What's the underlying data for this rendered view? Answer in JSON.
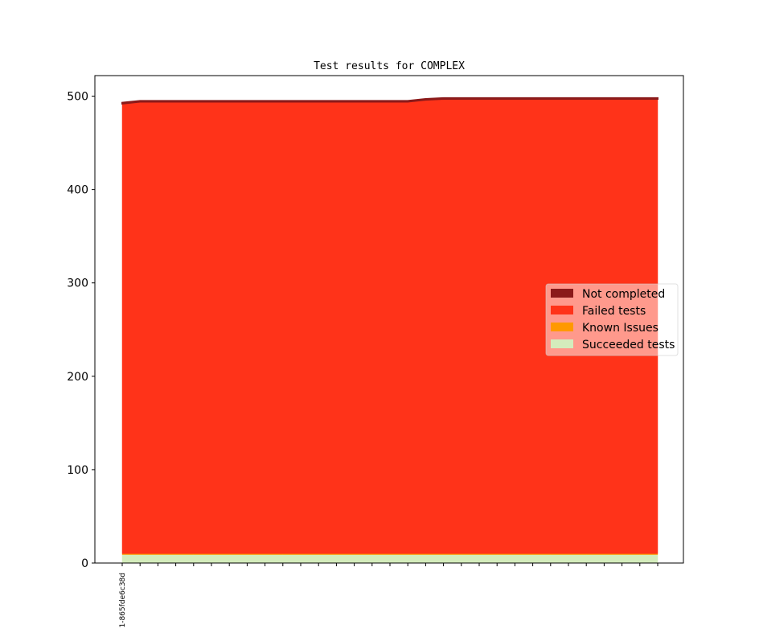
{
  "chart_data": {
    "type": "area",
    "stacked": true,
    "title": "Test results for COMPLEX",
    "xlabel": "",
    "ylabel": "",
    "ylim": [
      0,
      522
    ],
    "y_ticks": [
      0,
      100,
      200,
      300,
      400,
      500
    ],
    "x_count": 31,
    "x_labels": [
      "1-865fde6c38d"
    ],
    "grid": false,
    "legend_position": "center-right",
    "series": [
      {
        "name": "Succeeded tests",
        "color": "#d4ecbc",
        "values": [
          9,
          9,
          9,
          9,
          9,
          9,
          9,
          9,
          9,
          9,
          9,
          9,
          9,
          9,
          9,
          9,
          9,
          9,
          9,
          9,
          9,
          9,
          9,
          9,
          9,
          9,
          9,
          9,
          9,
          9,
          9
        ]
      },
      {
        "name": "Known Issues",
        "color": "#ff9900",
        "values": [
          1,
          1,
          1,
          1,
          1,
          1,
          1,
          1,
          1,
          1,
          1,
          1,
          1,
          1,
          1,
          1,
          1,
          1,
          1,
          1,
          1,
          1,
          1,
          1,
          1,
          1,
          1,
          1,
          1,
          1,
          1
        ]
      },
      {
        "name": "Failed tests",
        "color": "#ff3319",
        "values": [
          482,
          484,
          484,
          484,
          484,
          484,
          484,
          484,
          484,
          484,
          484,
          484,
          484,
          484,
          484,
          484,
          484,
          486,
          487,
          487,
          487,
          487,
          487,
          487,
          487,
          487,
          487,
          487,
          487,
          487,
          487
        ]
      },
      {
        "name": "Not completed",
        "color": "#8b1a1a",
        "values": [
          1,
          1,
          1,
          1,
          1,
          1,
          1,
          1,
          1,
          1,
          1,
          1,
          1,
          1,
          1,
          1,
          1,
          1,
          1,
          1,
          1,
          1,
          1,
          1,
          1,
          1,
          1,
          1,
          1,
          1,
          1
        ]
      }
    ],
    "legend_order": [
      "Not completed",
      "Failed tests",
      "Known Issues",
      "Succeeded tests"
    ]
  }
}
